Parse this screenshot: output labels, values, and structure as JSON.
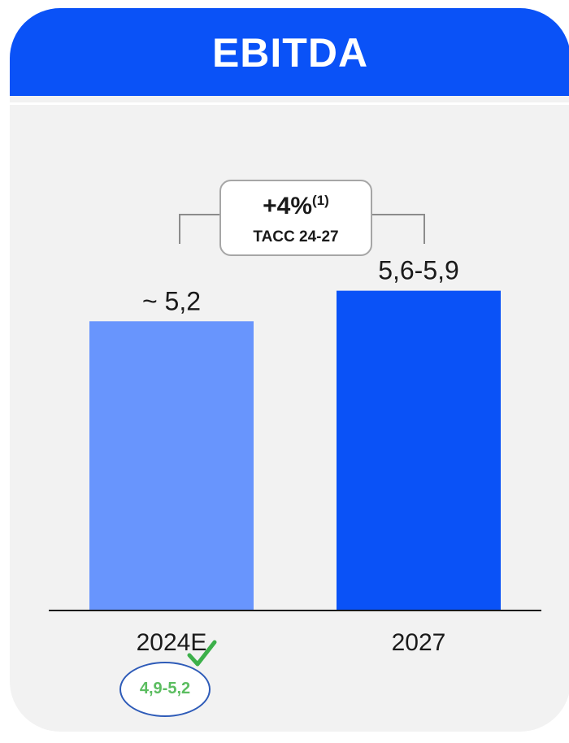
{
  "header": {
    "title": "EBITDA"
  },
  "cagr": {
    "value": "+4%",
    "footnote": "(1)",
    "label": "TACC 24-27"
  },
  "guidance": {
    "text": "4,9-5,2",
    "icon": "check-icon"
  },
  "colors": {
    "header": "#0a52f7",
    "bar_2024E": "#6895fd",
    "bar_2027": "#0a52f7",
    "check": "#3cb04a"
  },
  "chart_data": {
    "type": "bar",
    "categories": [
      "2024E",
      "2027"
    ],
    "values": [
      5.2,
      5.75
    ],
    "value_labels": [
      "~ 5,2",
      "5,6-5,9"
    ],
    "ylim": [
      0,
      6.3
    ],
    "title": "EBITDA",
    "xlabel": "",
    "ylabel": "",
    "grid": false
  }
}
